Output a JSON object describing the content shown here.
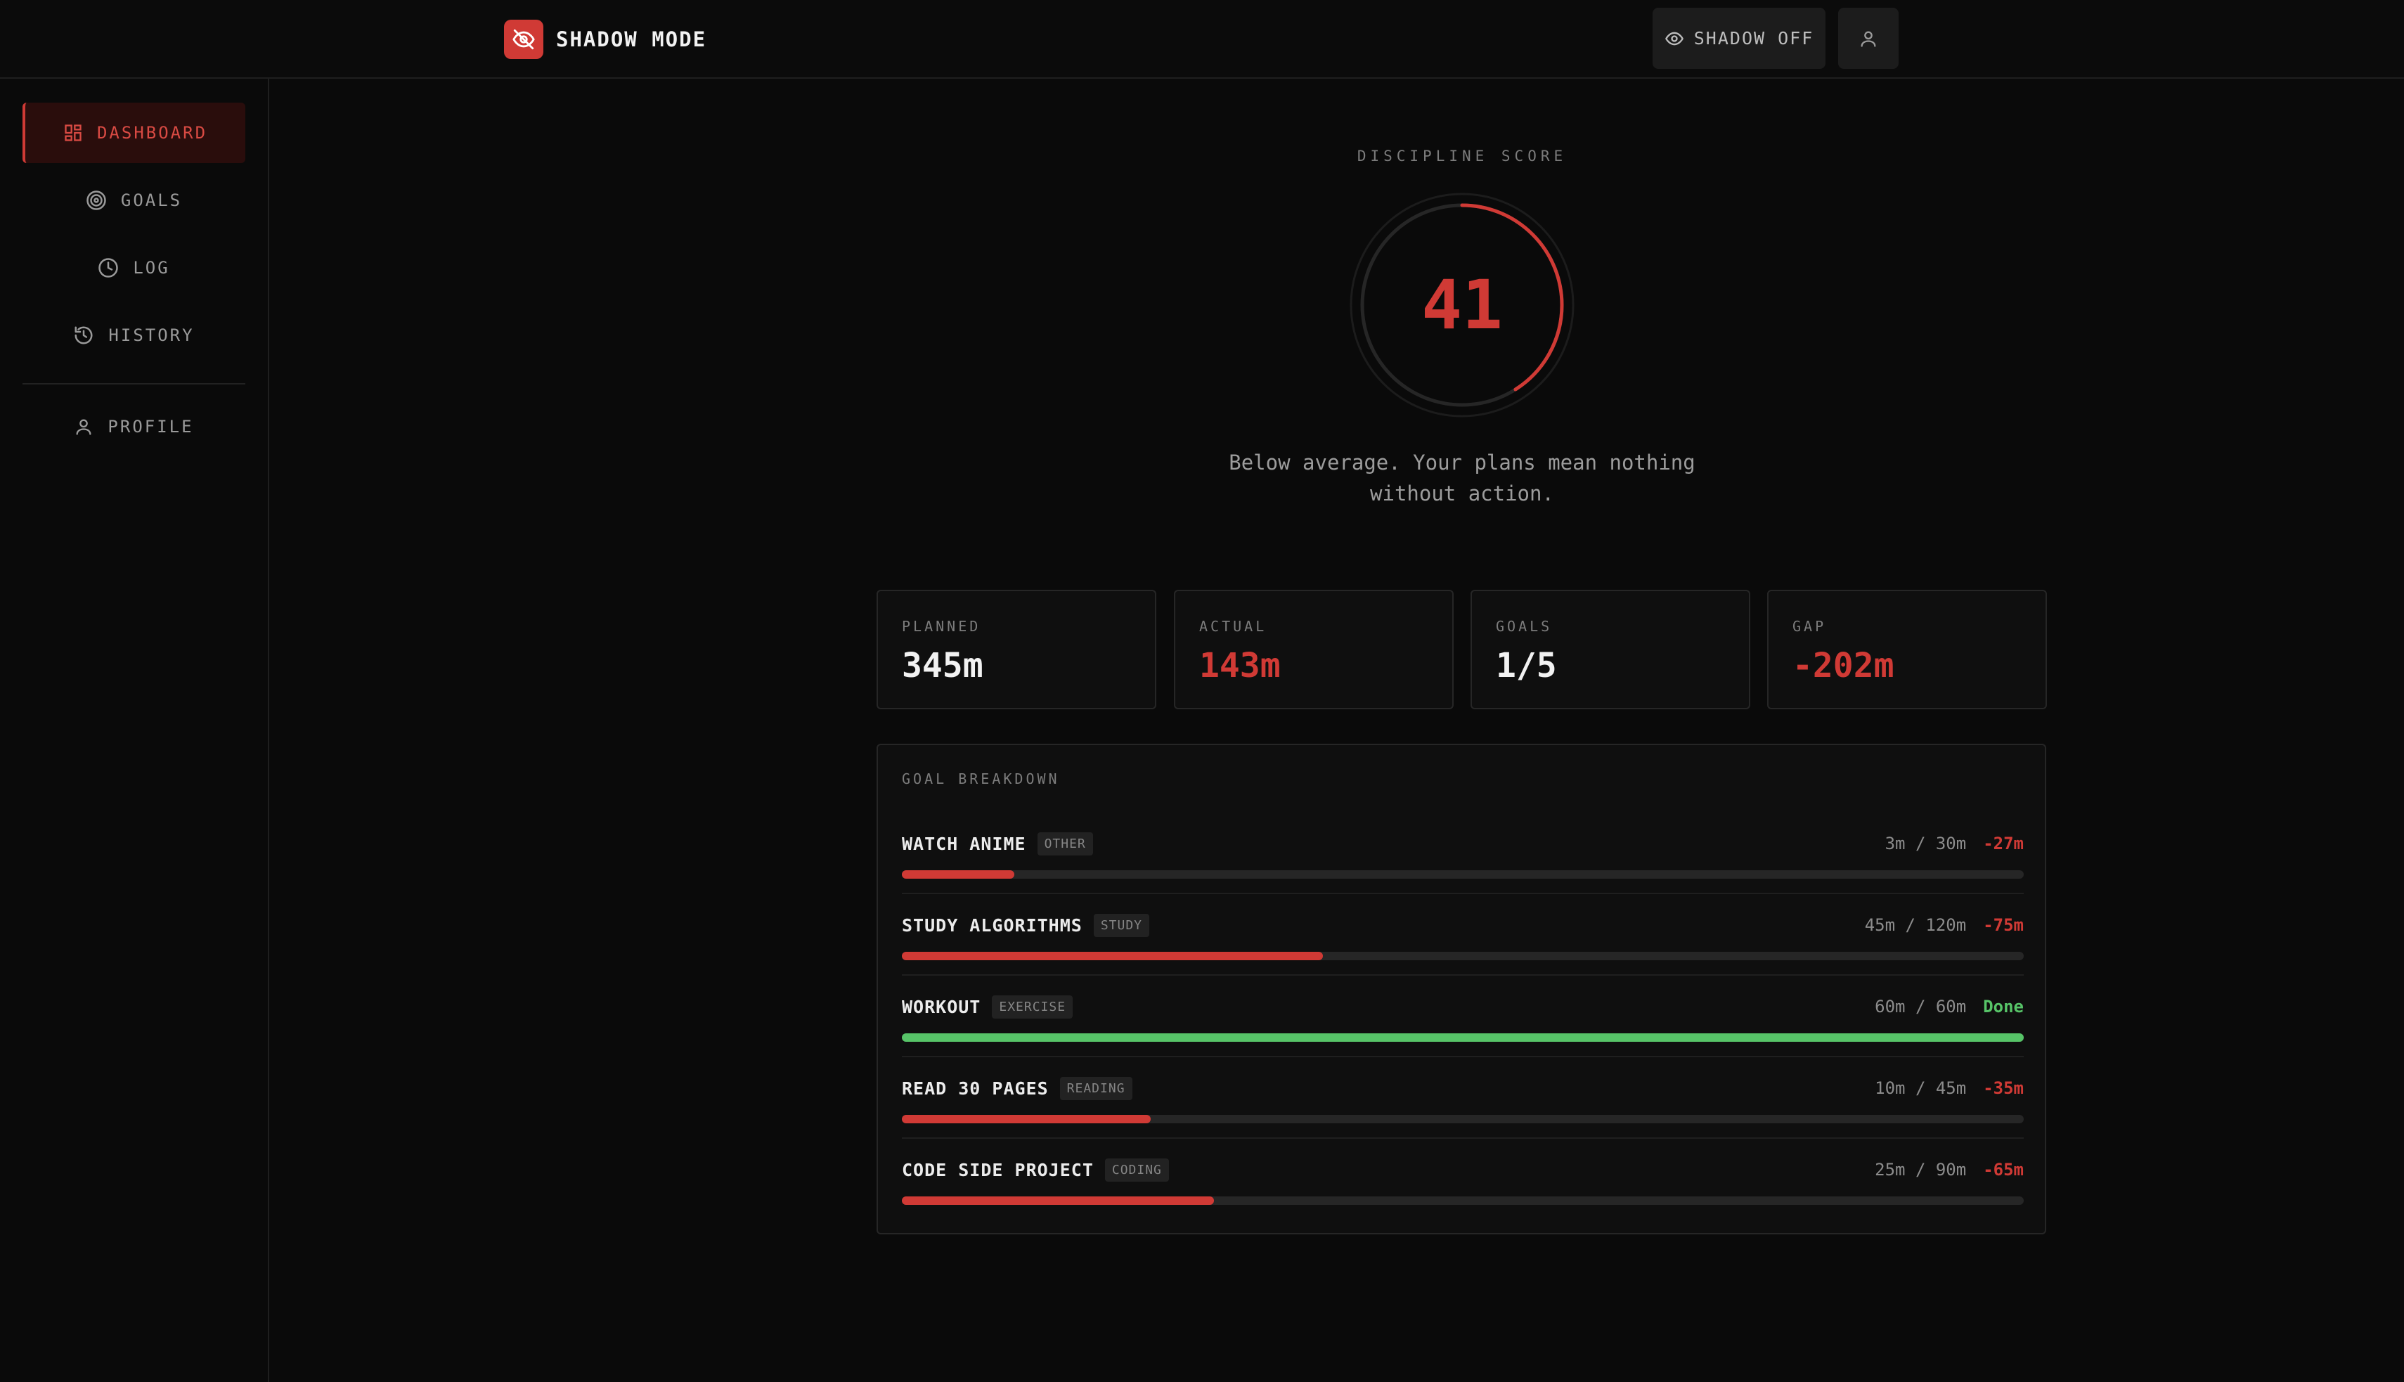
{
  "header": {
    "brand_name": "SHADOW MODE",
    "shadow_toggle_label": "SHADOW OFF"
  },
  "sidebar": {
    "items": [
      {
        "label": "DASHBOARD",
        "icon": "dashboard-icon",
        "active": true
      },
      {
        "label": "GOALS",
        "icon": "target-icon",
        "active": false
      },
      {
        "label": "LOG",
        "icon": "clock-icon",
        "active": false
      },
      {
        "label": "HISTORY",
        "icon": "history-icon",
        "active": false
      },
      {
        "label": "PROFILE",
        "icon": "user-icon",
        "active": false
      }
    ]
  },
  "score": {
    "label": "DISCIPLINE SCORE",
    "value": "41",
    "percent": 41,
    "message": "Below average. Your plans mean nothing without action."
  },
  "stats": [
    {
      "label": "PLANNED",
      "value": "345m"
    },
    {
      "label": "ACTUAL",
      "value": "143m"
    },
    {
      "label": "GOALS",
      "value": "1/5"
    },
    {
      "label": "GAP",
      "value": "-202m"
    }
  ],
  "breakdown": {
    "title": "GOAL BREAKDOWN",
    "goals": [
      {
        "name": "WATCH ANIME",
        "tag": "OTHER",
        "progress": "3m / 30m",
        "delta": "-27m",
        "fraction": 0.1,
        "done": false
      },
      {
        "name": "STUDY ALGORITHMS",
        "tag": "STUDY",
        "progress": "45m / 120m",
        "delta": "-75m",
        "fraction": 0.375,
        "done": false
      },
      {
        "name": "WORKOUT",
        "tag": "EXERCISE",
        "progress": "60m / 60m",
        "delta": "Done",
        "fraction": 1.0,
        "done": true
      },
      {
        "name": "READ 30 PAGES",
        "tag": "READING",
        "progress": "10m / 45m",
        "delta": "-35m",
        "fraction": 0.222,
        "done": false
      },
      {
        "name": "CODE SIDE PROJECT",
        "tag": "CODING",
        "progress": "25m / 90m",
        "delta": "-65m",
        "fraction": 0.278,
        "done": false
      }
    ]
  },
  "colors": {
    "accent": "#d03a35",
    "success": "#57c468",
    "background": "#0a0a0a"
  }
}
